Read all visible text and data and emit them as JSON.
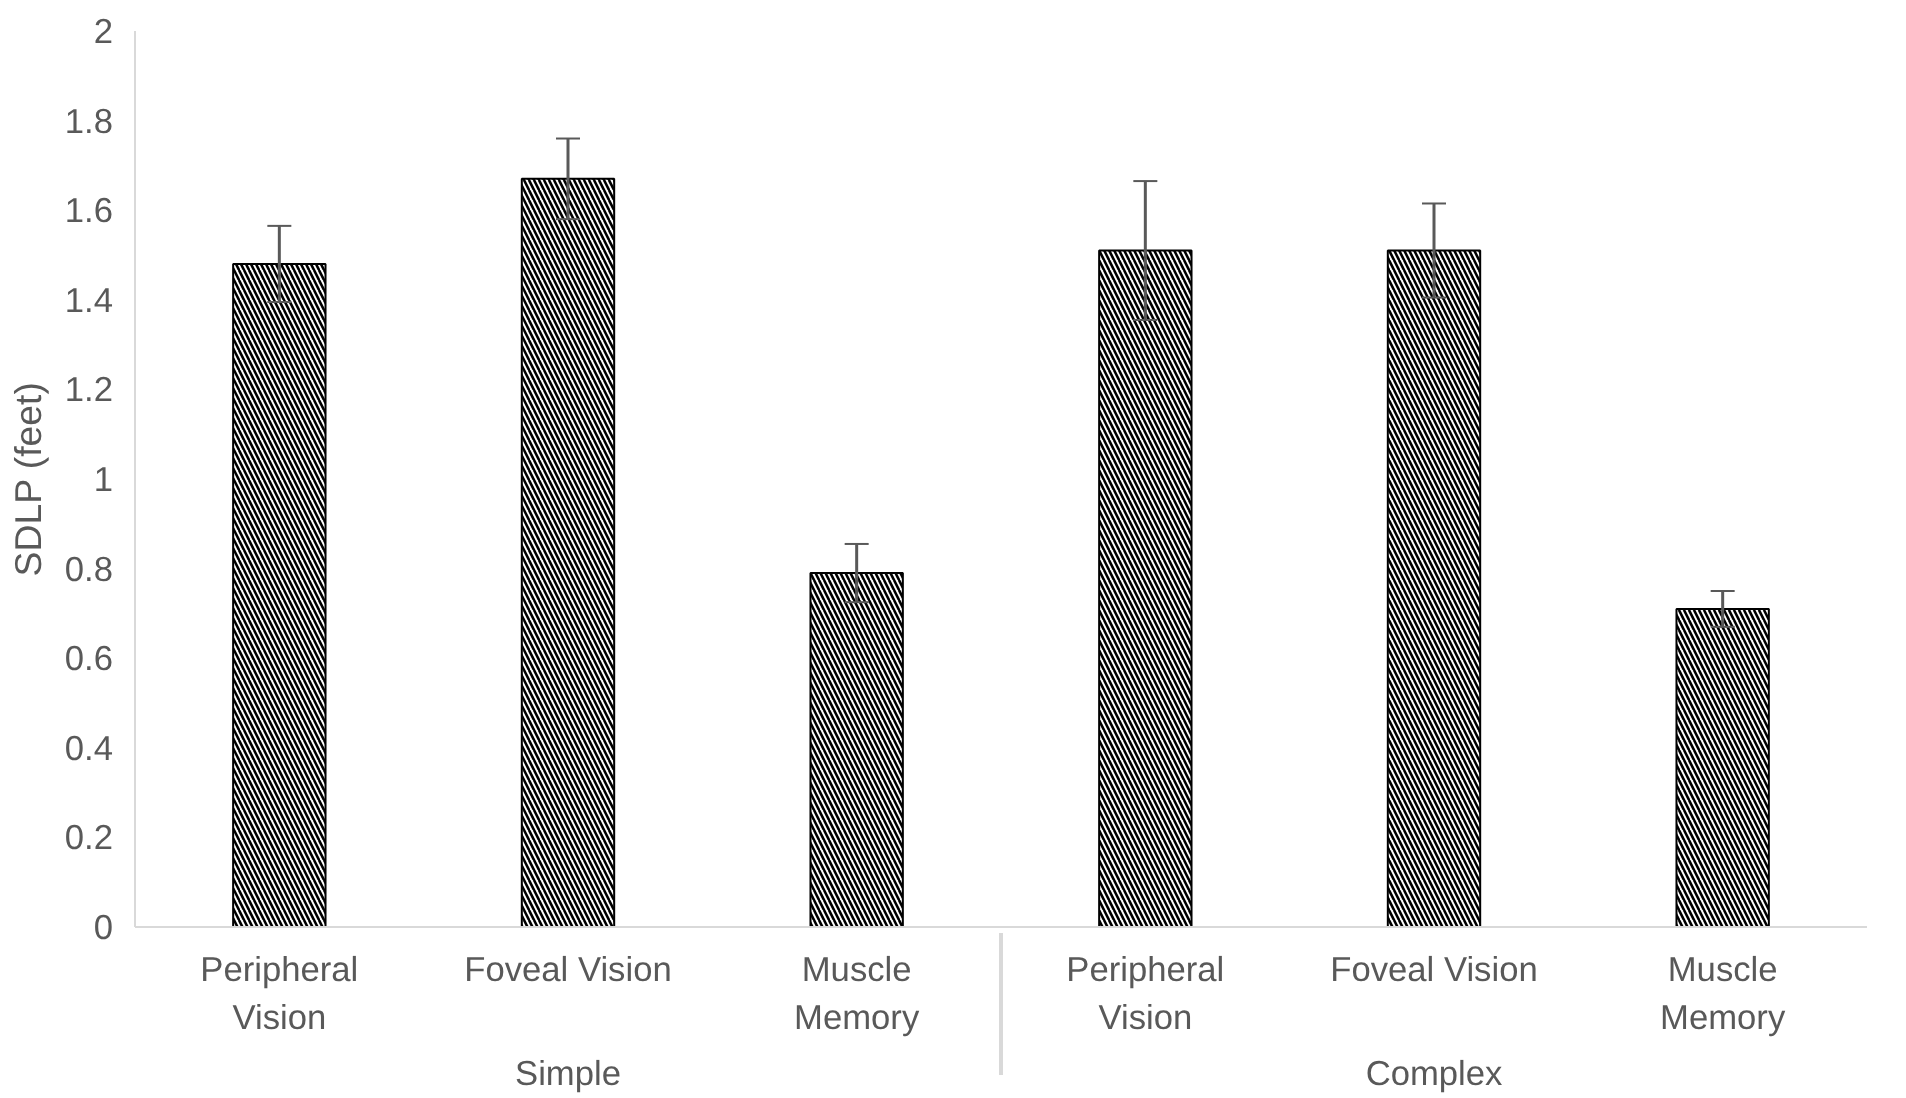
{
  "chart_data": {
    "type": "bar",
    "ylabel": "SDLP (feet)",
    "categories": [
      "Peripheral Vision",
      "Foveal Vision",
      "Muscle Memory",
      "Peripheral Vision",
      "Foveal Vision",
      "Muscle Memory"
    ],
    "values": [
      1.48,
      1.67,
      0.79,
      1.51,
      1.51,
      0.71
    ],
    "errors": [
      0.085,
      0.09,
      0.065,
      0.155,
      0.105,
      0.04
    ],
    "color": "#000000",
    "annotations": [
      "Simple",
      "Complex"
    ],
    "ylim": [
      0,
      2
    ],
    "yticks": [
      0,
      0.2,
      0.4,
      0.6,
      0.8,
      1,
      1.2,
      1.4,
      1.6,
      1.8,
      2
    ],
    "grid": false
  }
}
